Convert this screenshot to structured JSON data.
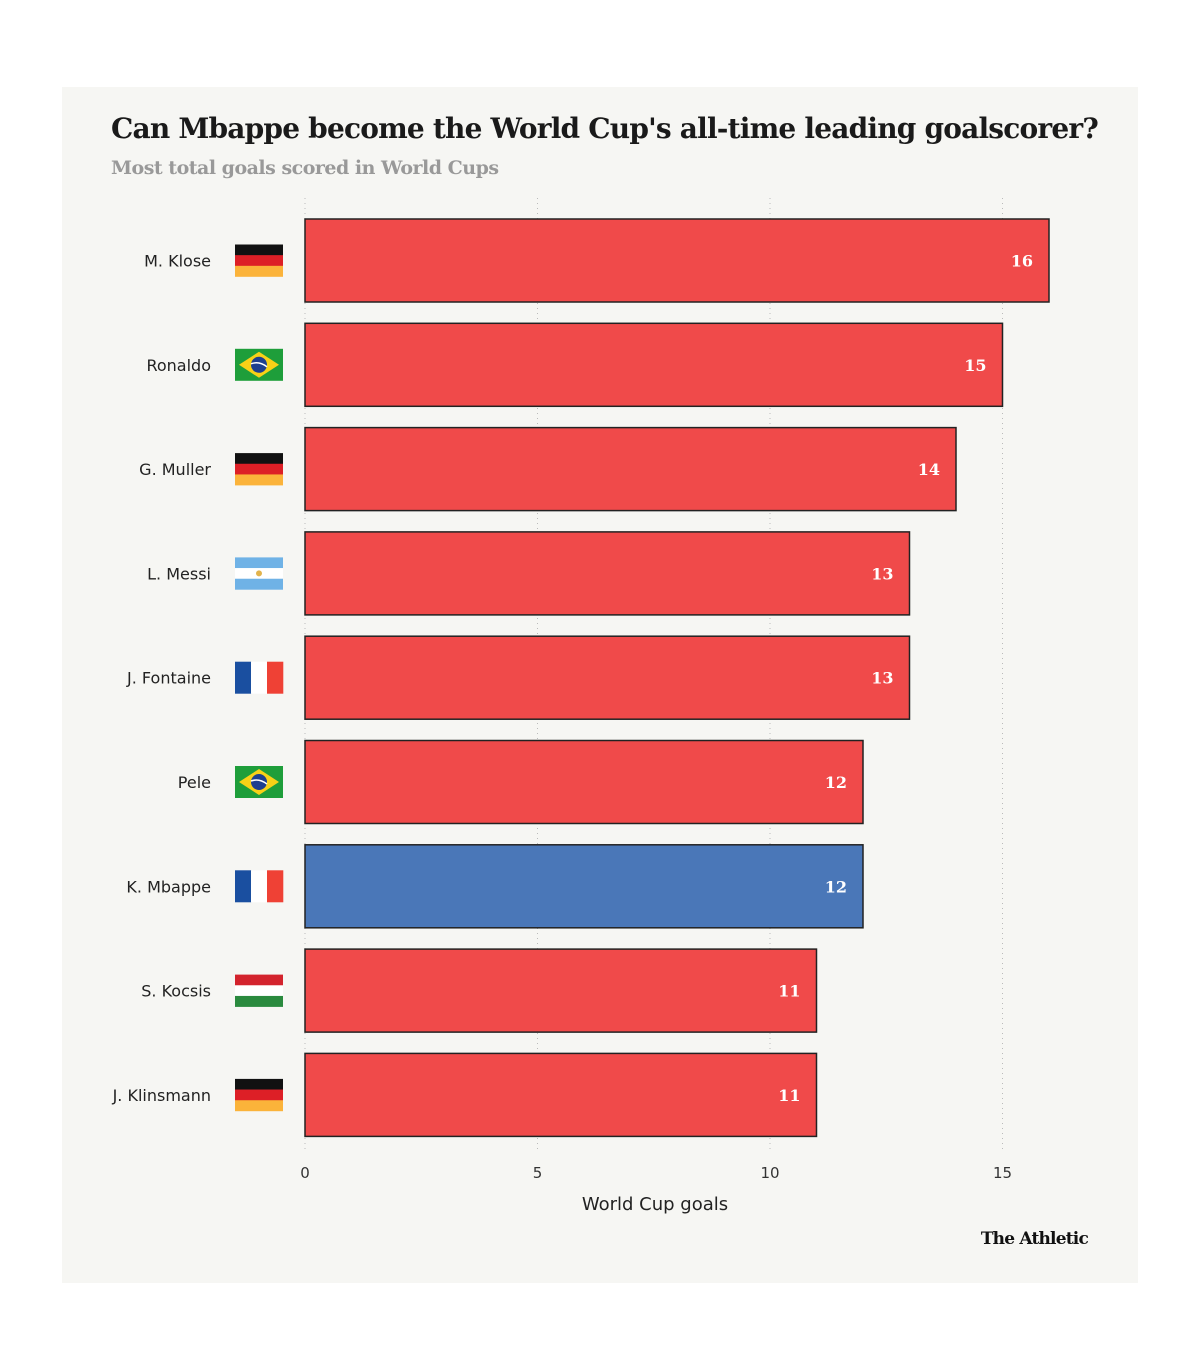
{
  "chart_data": {
    "type": "bar",
    "orientation": "horizontal",
    "title": "Can Mbappe become the World Cup's all-time leading goalscorer?",
    "subtitle": "Most total goals scored in World Cups",
    "xlabel": "World Cup goals",
    "ylabel": "",
    "xlim": [
      0,
      16
    ],
    "xticks": [
      0,
      5,
      10,
      15
    ],
    "grid": "vertical dotted",
    "categories": [
      "M. Klose",
      "Ronaldo",
      "G. Muller",
      "L. Messi",
      "J. Fontaine",
      "Pele",
      "K. Mbappe",
      "S. Kocsis",
      "J. Klinsmann"
    ],
    "flags": [
      "germany",
      "brazil",
      "germany",
      "argentina",
      "france",
      "brazil",
      "france",
      "hungary",
      "germany"
    ],
    "values": [
      16,
      15,
      14,
      13,
      13,
      12,
      12,
      11,
      11
    ],
    "highlight": "K. Mbappe",
    "colors": {
      "default": "#f04a4a",
      "highlight": "#4a77b8"
    }
  },
  "source": "The Athletic"
}
